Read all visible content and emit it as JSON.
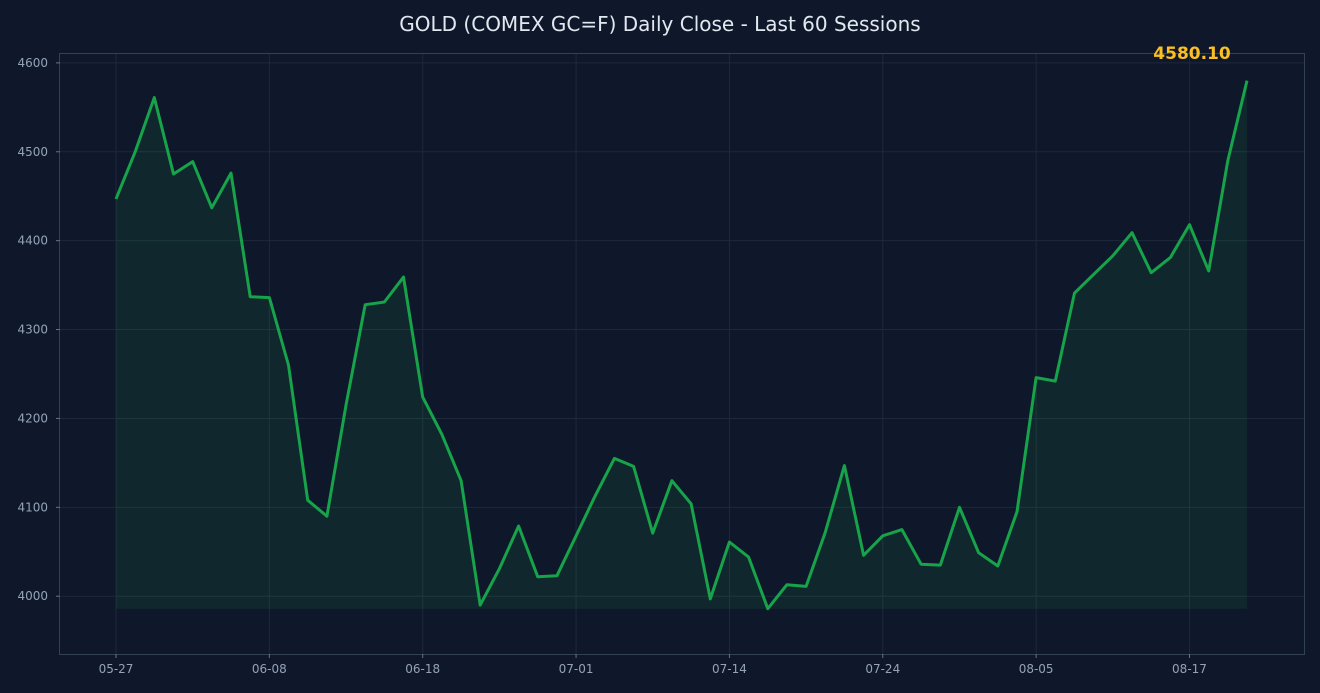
{
  "chart_data": {
    "type": "area",
    "title": "GOLD (COMEX GC=F)  Daily Close - Last 60 Sessions",
    "xlabel": "",
    "ylabel": "",
    "x_tick_labels": [
      "05-27",
      "06-08",
      "06-18",
      "07-01",
      "07-14",
      "07-24",
      "08-05",
      "08-17"
    ],
    "x_tick_indices": [
      0,
      8,
      16,
      24,
      32,
      40,
      48,
      56
    ],
    "y_ticks": [
      4000,
      4100,
      4200,
      4300,
      4400,
      4500,
      4600
    ],
    "ylim": [
      3935,
      4610
    ],
    "grid": true,
    "last_value_label": "4580.10",
    "colors": {
      "line": "#16a34a",
      "fill": "#16a34a",
      "label": "#fbbf24",
      "background": "#0f172a"
    },
    "series": [
      {
        "values": [
          4447,
          4500,
          4561,
          4475,
          4489,
          4437,
          4476,
          4337,
          4336,
          4260,
          4108,
          4090,
          4215,
          4328,
          4331,
          4359,
          4224,
          4182,
          4130,
          3990,
          4031,
          4079,
          4022,
          4023,
          4068,
          4113,
          4155,
          4146,
          4071,
          4130,
          4104,
          3997,
          4061,
          4044,
          3986,
          4013,
          4011,
          4072,
          4147,
          4046,
          4068,
          4075,
          4036,
          4035,
          4100,
          4049,
          4034,
          4095,
          4246,
          4242,
          4341,
          4362,
          4383,
          4409,
          4364,
          4381,
          4418,
          4366,
          4490,
          4580.1
        ]
      }
    ]
  }
}
